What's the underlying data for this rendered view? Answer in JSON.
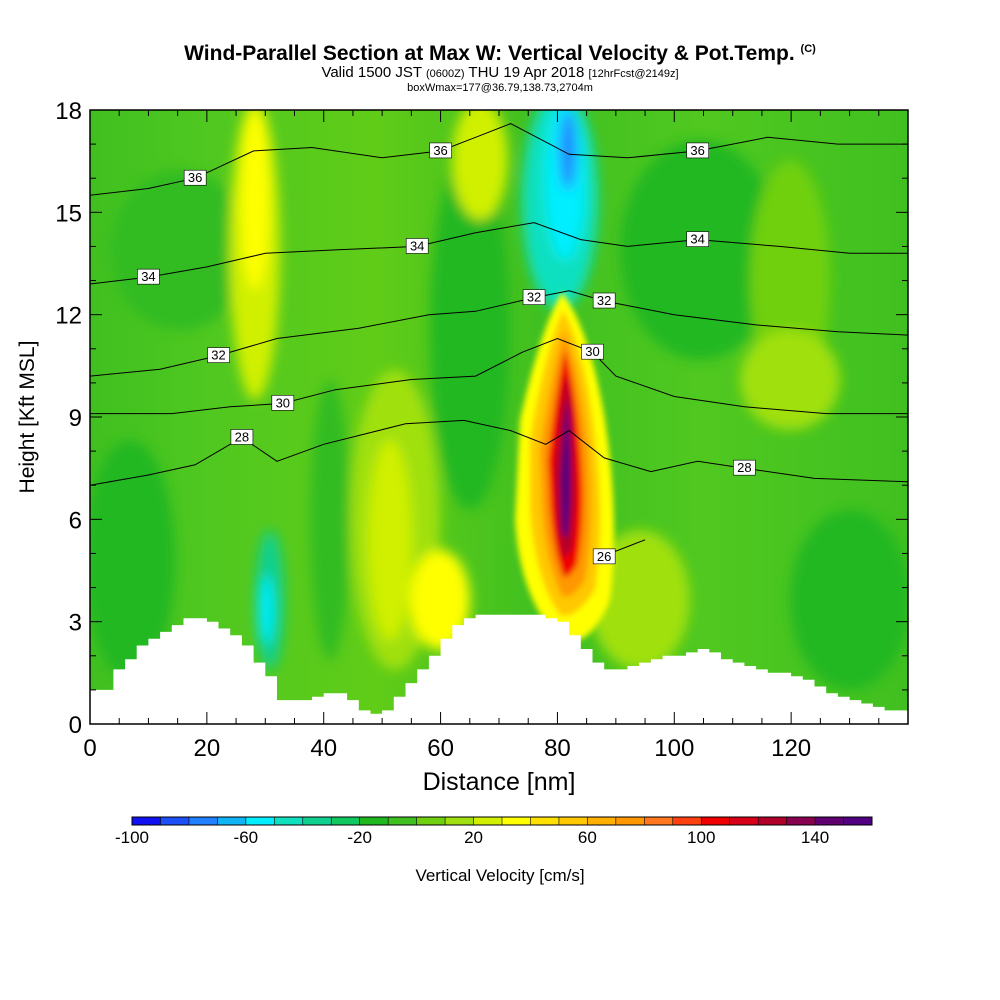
{
  "title": {
    "main": "Wind-Parallel Section at Max W: Vertical Velocity & Pot.Temp.",
    "copyright": "(C)",
    "valid_prefix": "Valid 1500 JST",
    "valid_utc": "(0600Z)",
    "valid_date": "THU 19 Apr 2018",
    "forecast_info": "[12hrFcst@2149z]",
    "box_info": "boxWmax=177@36.79,138.73,2704m"
  },
  "chart_data": {
    "type": "heatmap",
    "xlabel": "Distance [nm]",
    "ylabel": "Height [Kft MSL]",
    "xlim": [
      0,
      140
    ],
    "ylim": [
      0,
      18
    ],
    "x_ticks": [
      0,
      20,
      40,
      60,
      80,
      100,
      120
    ],
    "y_ticks": [
      0,
      3,
      6,
      9,
      12,
      15,
      18
    ],
    "colorbar": {
      "label": "Vertical Velocity [cm/s]",
      "min": -100,
      "max": 160,
      "step": 10,
      "tick_labels": [
        "-100",
        "-60",
        "-20",
        "20",
        "60",
        "100",
        "140"
      ],
      "colors": [
        "#1010f0",
        "#1e50f8",
        "#2080ff",
        "#10b4f4",
        "#00eeff",
        "#10e0c0",
        "#10d090",
        "#10c860",
        "#20b820",
        "#40c020",
        "#70d010",
        "#a0e010",
        "#d0f000",
        "#ffff00",
        "#ffe000",
        "#ffc800",
        "#ffb000",
        "#ff9800",
        "#ff7820",
        "#ff4010",
        "#f00000",
        "#d80018",
        "#b0002a",
        "#880050",
        "#600070",
        "#500080"
      ]
    },
    "w_max": 177,
    "max_w_location": {
      "distance_nm": 81,
      "height_kft": 8.0
    },
    "updraft_core": {
      "distance_nm": 81,
      "height_range_kft": [
        4.5,
        11.5
      ]
    },
    "downdraft_cores": [
      {
        "distance_nm": 82,
        "height_range_kft": [
          14,
          18
        ],
        "approx_min_w": -60
      },
      {
        "distance_nm": 30,
        "height_range_kft": [
          2,
          6
        ],
        "approx_min_w": -50
      }
    ],
    "theta_contours": [
      {
        "label": "26",
        "points": [
          [
            88,
            4.9
          ],
          [
            89,
            5.0
          ],
          [
            95,
            5.4
          ]
        ]
      },
      {
        "label": "28",
        "points": [
          [
            0,
            7.0
          ],
          [
            10,
            7.3
          ],
          [
            18,
            7.6
          ],
          [
            26,
            8.4
          ],
          [
            32,
            7.7
          ],
          [
            40,
            8.2
          ],
          [
            54,
            8.8
          ],
          [
            64,
            8.9
          ],
          [
            72,
            8.6
          ],
          [
            78,
            8.2
          ],
          [
            82,
            8.6
          ],
          [
            88,
            7.8
          ],
          [
            96,
            7.4
          ],
          [
            104,
            7.7
          ],
          [
            112,
            7.5
          ],
          [
            124,
            7.2
          ],
          [
            140,
            7.1
          ]
        ]
      },
      {
        "label": "30",
        "points": [
          [
            0,
            9.1
          ],
          [
            14,
            9.1
          ],
          [
            24,
            9.3
          ],
          [
            33,
            9.4
          ],
          [
            42,
            9.8
          ],
          [
            55,
            10.1
          ],
          [
            66,
            10.2
          ],
          [
            74,
            10.9
          ],
          [
            80,
            11.3
          ],
          [
            86,
            10.9
          ],
          [
            90,
            10.2
          ],
          [
            100,
            9.6
          ],
          [
            112,
            9.3
          ],
          [
            126,
            9.1
          ],
          [
            140,
            9.1
          ]
        ]
      },
      {
        "label": "32",
        "points": [
          [
            0,
            10.2
          ],
          [
            12,
            10.4
          ],
          [
            22,
            10.8
          ],
          [
            32,
            11.3
          ],
          [
            46,
            11.6
          ],
          [
            58,
            12.0
          ],
          [
            66,
            12.1
          ],
          [
            76,
            12.5
          ],
          [
            82,
            12.7
          ],
          [
            88,
            12.4
          ],
          [
            100,
            12.0
          ],
          [
            114,
            11.7
          ],
          [
            128,
            11.5
          ],
          [
            140,
            11.4
          ]
        ]
      },
      {
        "label": "34",
        "points": [
          [
            0,
            12.9
          ],
          [
            10,
            13.1
          ],
          [
            20,
            13.4
          ],
          [
            30,
            13.8
          ],
          [
            42,
            13.9
          ],
          [
            56,
            14.0
          ],
          [
            66,
            14.4
          ],
          [
            76,
            14.7
          ],
          [
            84,
            14.2
          ],
          [
            92,
            14.0
          ],
          [
            104,
            14.2
          ],
          [
            118,
            14.0
          ],
          [
            130,
            13.8
          ],
          [
            140,
            13.8
          ]
        ]
      },
      {
        "label": "36",
        "points": [
          [
            0,
            15.5
          ],
          [
            10,
            15.7
          ],
          [
            18,
            16.0
          ],
          [
            28,
            16.8
          ],
          [
            38,
            16.9
          ],
          [
            50,
            16.6
          ],
          [
            60,
            16.8
          ],
          [
            66,
            17.2
          ],
          [
            72,
            17.6
          ],
          [
            82,
            16.7
          ],
          [
            92,
            16.6
          ],
          [
            104,
            16.8
          ],
          [
            116,
            17.2
          ],
          [
            128,
            17.0
          ],
          [
            140,
            17.0
          ]
        ]
      }
    ],
    "terrain_kft": [
      [
        0,
        1.0
      ],
      [
        2,
        1.0
      ],
      [
        4,
        1.6
      ],
      [
        6,
        1.9
      ],
      [
        8,
        2.3
      ],
      [
        10,
        2.5
      ],
      [
        12,
        2.7
      ],
      [
        14,
        2.9
      ],
      [
        16,
        3.1
      ],
      [
        18,
        3.1
      ],
      [
        20,
        3.0
      ],
      [
        22,
        2.8
      ],
      [
        24,
        2.6
      ],
      [
        26,
        2.3
      ],
      [
        28,
        1.8
      ],
      [
        30,
        1.4
      ],
      [
        32,
        0.7
      ],
      [
        34,
        0.7
      ],
      [
        36,
        0.7
      ],
      [
        38,
        0.8
      ],
      [
        40,
        0.9
      ],
      [
        42,
        0.9
      ],
      [
        44,
        0.7
      ],
      [
        46,
        0.4
      ],
      [
        48,
        0.3
      ],
      [
        50,
        0.4
      ],
      [
        52,
        0.8
      ],
      [
        54,
        1.2
      ],
      [
        56,
        1.6
      ],
      [
        58,
        2.0
      ],
      [
        60,
        2.5
      ],
      [
        62,
        2.9
      ],
      [
        64,
        3.1
      ],
      [
        66,
        3.2
      ],
      [
        68,
        3.2
      ],
      [
        70,
        3.2
      ],
      [
        72,
        3.2
      ],
      [
        74,
        3.2
      ],
      [
        76,
        3.2
      ],
      [
        78,
        3.1
      ],
      [
        80,
        3.0
      ],
      [
        82,
        2.6
      ],
      [
        84,
        2.2
      ],
      [
        86,
        1.8
      ],
      [
        88,
        1.6
      ],
      [
        90,
        1.6
      ],
      [
        92,
        1.7
      ],
      [
        94,
        1.8
      ],
      [
        96,
        1.9
      ],
      [
        98,
        2.0
      ],
      [
        100,
        2.0
      ],
      [
        102,
        2.1
      ],
      [
        104,
        2.2
      ],
      [
        106,
        2.1
      ],
      [
        108,
        1.9
      ],
      [
        110,
        1.8
      ],
      [
        112,
        1.7
      ],
      [
        114,
        1.6
      ],
      [
        116,
        1.5
      ],
      [
        118,
        1.5
      ],
      [
        120,
        1.4
      ],
      [
        122,
        1.3
      ],
      [
        124,
        1.1
      ],
      [
        126,
        0.9
      ],
      [
        128,
        0.8
      ],
      [
        130,
        0.7
      ],
      [
        132,
        0.6
      ],
      [
        134,
        0.5
      ],
      [
        136,
        0.4
      ],
      [
        138,
        0.4
      ],
      [
        140,
        0.4
      ]
    ]
  }
}
